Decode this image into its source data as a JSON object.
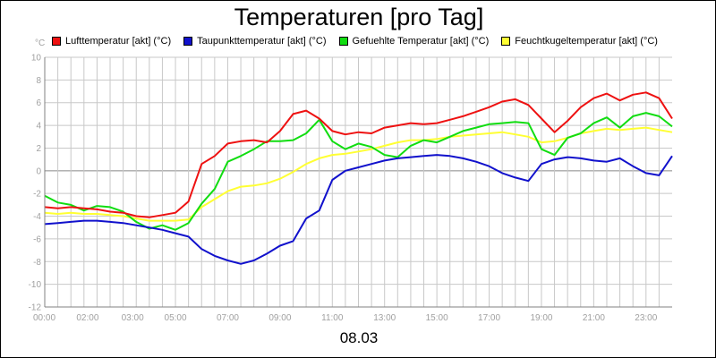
{
  "title": "Temperaturen [pro Tag]",
  "date_label": "08.03",
  "chart_data": {
    "type": "line",
    "title": "Temperaturen [pro Tag]",
    "ylabel": "°C",
    "xlabel": "08.03",
    "ylim": [
      -12,
      10
    ],
    "xlim": [
      0,
      24
    ],
    "yticks": [
      "10",
      "8",
      "6",
      "4",
      "2",
      "0",
      "-2",
      "-4",
      "-6",
      "-8",
      "-10",
      "-12"
    ],
    "xticks": [
      "00:00",
      "02:00",
      "03:00",
      "05:00",
      "07:00",
      "09:00",
      "11:00",
      "13:00",
      "15:00",
      "17:00",
      "19:00",
      "21:00",
      "23:00"
    ],
    "xtick_hours": [
      0,
      2,
      3,
      5,
      7,
      9,
      11,
      13,
      15,
      17,
      19,
      21,
      23
    ],
    "grid": true,
    "legend_position": "top",
    "series": [
      {
        "name": "Lufttemperatur [akt] (°C)",
        "color": "#ee1111",
        "x": [
          0,
          0.5,
          1,
          1.5,
          2,
          2.5,
          3,
          3.5,
          4,
          4.5,
          5,
          5.5,
          6,
          6.5,
          7,
          7.5,
          8,
          8.5,
          9,
          9.5,
          10,
          10.5,
          11,
          11.5,
          12,
          12.5,
          13,
          13.5,
          14,
          14.5,
          15,
          15.5,
          16,
          16.5,
          17,
          17.5,
          18,
          18.5,
          19,
          19.5,
          20,
          20.5,
          21,
          21.5,
          22,
          22.5,
          23,
          23.5,
          24
        ],
        "y": [
          -3.2,
          -3.3,
          -3.2,
          -3.3,
          -3.4,
          -3.6,
          -3.7,
          -4.0,
          -4.1,
          -3.9,
          -3.7,
          -2.7,
          0.6,
          1.3,
          2.4,
          2.6,
          2.7,
          2.5,
          3.5,
          5.0,
          5.3,
          4.6,
          3.5,
          3.2,
          3.4,
          3.3,
          3.8,
          4.0,
          4.2,
          4.1,
          4.2,
          4.5,
          4.8,
          5.2,
          5.6,
          6.1,
          6.3,
          5.8,
          4.6,
          3.4,
          4.4,
          5.6,
          6.4,
          6.8,
          6.2,
          6.7,
          6.9,
          6.4,
          4.6
        ]
      },
      {
        "name": "Taupunkttemperatur [akt] (°C)",
        "color": "#1111cc",
        "x": [
          0,
          0.5,
          1,
          1.5,
          2,
          2.5,
          3,
          3.5,
          4,
          4.5,
          5,
          5.5,
          6,
          6.5,
          7,
          7.5,
          8,
          8.5,
          9,
          9.5,
          10,
          10.5,
          11,
          11.5,
          12,
          12.5,
          13,
          13.5,
          14,
          14.5,
          15,
          15.5,
          16,
          16.5,
          17,
          17.5,
          18,
          18.5,
          19,
          19.5,
          20,
          20.5,
          21,
          21.5,
          22,
          22.5,
          23,
          23.5,
          24
        ],
        "y": [
          -4.7,
          -4.6,
          -4.5,
          -4.4,
          -4.4,
          -4.5,
          -4.6,
          -4.8,
          -5.0,
          -5.2,
          -5.5,
          -5.8,
          -6.9,
          -7.5,
          -7.9,
          -8.2,
          -7.9,
          -7.3,
          -6.6,
          -6.2,
          -4.2,
          -3.5,
          -0.8,
          0.0,
          0.3,
          0.6,
          0.9,
          1.1,
          1.2,
          1.3,
          1.4,
          1.3,
          1.1,
          0.8,
          0.4,
          -0.2,
          -0.6,
          -0.9,
          0.6,
          1.0,
          1.2,
          1.1,
          0.9,
          0.8,
          1.1,
          0.4,
          -0.2,
          -0.4,
          1.3
        ]
      },
      {
        "name": "Gefuehlte Temperatur [akt] (°C)",
        "color": "#11dd11",
        "x": [
          0,
          0.5,
          1,
          1.5,
          2,
          2.5,
          3,
          3.5,
          4,
          4.5,
          5,
          5.5,
          6,
          6.5,
          7,
          7.5,
          8,
          8.5,
          9,
          9.5,
          10,
          10.5,
          11,
          11.5,
          12,
          12.5,
          13,
          13.5,
          14,
          14.5,
          15,
          15.5,
          16,
          16.5,
          17,
          17.5,
          18,
          18.5,
          19,
          19.5,
          20,
          20.5,
          21,
          21.5,
          22,
          22.5,
          23,
          23.5,
          24
        ],
        "y": [
          -2.2,
          -2.8,
          -3.0,
          -3.5,
          -3.1,
          -3.2,
          -3.6,
          -4.5,
          -5.1,
          -4.8,
          -5.2,
          -4.6,
          -2.9,
          -1.6,
          0.8,
          1.3,
          1.9,
          2.6,
          2.6,
          2.7,
          3.3,
          4.5,
          2.6,
          1.9,
          2.4,
          2.1,
          1.4,
          1.2,
          2.2,
          2.7,
          2.5,
          3.0,
          3.5,
          3.8,
          4.1,
          4.2,
          4.3,
          4.2,
          1.9,
          1.4,
          2.9,
          3.3,
          4.2,
          4.7,
          3.8,
          4.8,
          5.1,
          4.8,
          3.9
        ]
      },
      {
        "name": "Feuchtkugeltemperatur [akt] (°C)",
        "color": "#ffff33",
        "x": [
          0,
          0.5,
          1,
          1.5,
          2,
          2.5,
          3,
          3.5,
          4,
          4.5,
          5,
          5.5,
          6,
          6.5,
          7,
          7.5,
          8,
          8.5,
          9,
          9.5,
          10,
          10.5,
          11,
          11.5,
          12,
          12.5,
          13,
          13.5,
          14,
          14.5,
          15,
          15.5,
          16,
          16.5,
          17,
          17.5,
          18,
          18.5,
          19,
          19.5,
          20,
          20.5,
          21,
          21.5,
          22,
          22.5,
          23,
          23.5,
          24
        ],
        "y": [
          -3.7,
          -3.8,
          -3.7,
          -3.8,
          -3.8,
          -3.9,
          -4.0,
          -4.2,
          -4.4,
          -4.4,
          -4.4,
          -4.3,
          -3.2,
          -2.5,
          -1.8,
          -1.4,
          -1.3,
          -1.1,
          -0.7,
          -0.1,
          0.6,
          1.1,
          1.4,
          1.5,
          1.7,
          1.9,
          2.2,
          2.5,
          2.7,
          2.7,
          2.8,
          3.0,
          3.1,
          3.2,
          3.3,
          3.4,
          3.2,
          3.0,
          2.5,
          2.6,
          2.9,
          3.3,
          3.5,
          3.7,
          3.6,
          3.7,
          3.8,
          3.6,
          3.4
        ]
      }
    ]
  }
}
